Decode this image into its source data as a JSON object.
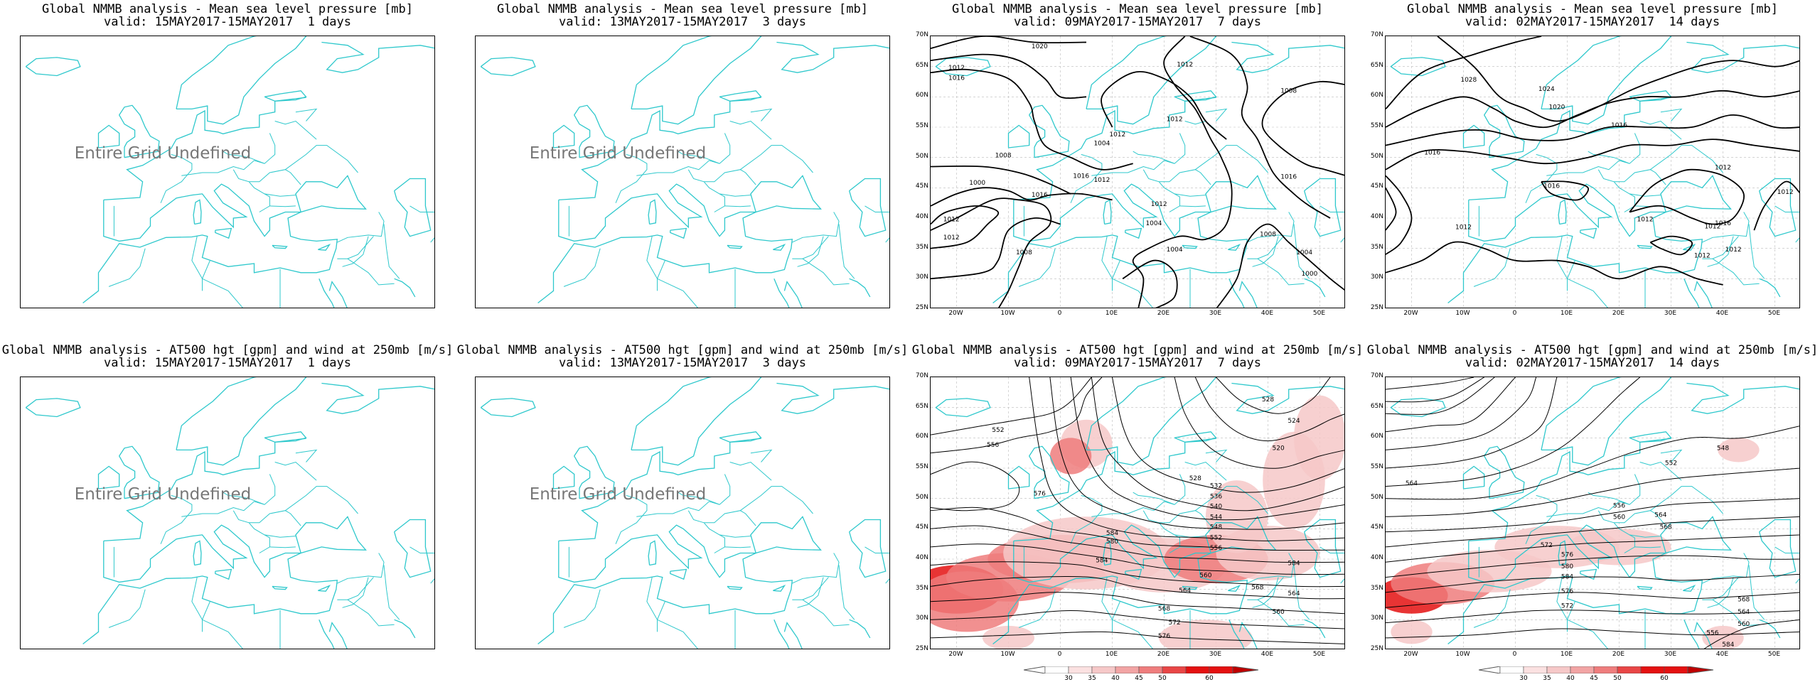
{
  "colors": {
    "coast": "#2ec8cc",
    "contour": "#000000",
    "wind_light": "#f6c8c8",
    "wind_mid": "#ef7d7d",
    "wind_strong": "#e41111"
  },
  "panels": [
    {
      "title": "Global NMMB analysis - Mean sea level pressure [mb]",
      "subtitle": "valid: 15MAY2017-15MAY2017  1 days",
      "undefined": "Entire Grid Undefined",
      "kind": "empty"
    },
    {
      "title": "Global NMMB analysis - Mean sea level pressure [mb]",
      "subtitle": "valid: 13MAY2017-15MAY2017  3 days",
      "undefined": "Entire Grid Undefined",
      "kind": "empty"
    },
    {
      "title": "Global NMMB analysis - Mean sea level pressure [mb]",
      "subtitle": "valid: 09MAY2017-15MAY2017  7 days",
      "kind": "mslp7"
    },
    {
      "title": "Global NMMB analysis - Mean sea level pressure [mb]",
      "subtitle": "valid: 02MAY2017-15MAY2017  14 days",
      "kind": "mslp14"
    },
    {
      "title": "Global NMMB analysis - AT500 hgt [gpm] and wind at 250mb [m/s]",
      "subtitle": "valid: 15MAY2017-15MAY2017  1 days",
      "undefined": "Entire Grid Undefined",
      "kind": "empty"
    },
    {
      "title": "Global NMMB analysis - AT500 hgt [gpm] and wind at 250mb [m/s]",
      "subtitle": "valid: 13MAY2017-15MAY2017  3 days",
      "undefined": "Entire Grid Undefined",
      "kind": "empty"
    },
    {
      "title": "Global NMMB analysis - AT500 hgt [gpm] and wind at 250mb [m/s]",
      "subtitle": "valid: 09MAY2017-15MAY2017  7 days",
      "kind": "z7"
    },
    {
      "title": "Global NMMB analysis - AT500 hgt [gpm] and wind at 250mb [m/s]",
      "subtitle": "valid: 02MAY2017-15MAY2017  14 days",
      "kind": "z14"
    }
  ],
  "lat_labels": [
    "70N",
    "65N",
    "60N",
    "55N",
    "50N",
    "45N",
    "40N",
    "35N",
    "30N",
    "25N"
  ],
  "lon_labels": [
    "20W",
    "10W",
    "0",
    "10E",
    "20E",
    "30E",
    "40E",
    "50E"
  ],
  "mslp7_labels": [
    "1020",
    "1016",
    "1012",
    "1008",
    "1004",
    "1000",
    "1012",
    "1004",
    "1008",
    "1012",
    "1016",
    "1012",
    "1016",
    "1004",
    "1008",
    "1004",
    "1000",
    "1008",
    "1012",
    "1012",
    "1012",
    "1016",
    "1012"
  ],
  "mslp14_labels": [
    "1028",
    "1024",
    "1020",
    "1016",
    "1016",
    "1012",
    "1016",
    "1012",
    "1012",
    "1016",
    "1012",
    "1012",
    "1012",
    "1012"
  ],
  "z7_labels": [
    "528",
    "524",
    "520",
    "552",
    "556",
    "528",
    "532",
    "536",
    "540",
    "544",
    "548",
    "552",
    "556",
    "560",
    "564",
    "568",
    "572",
    "576",
    "580",
    "584",
    "584",
    "584",
    "568",
    "564",
    "560",
    "576"
  ],
  "z14_labels": [
    "548",
    "564",
    "552",
    "556",
    "560",
    "564",
    "568",
    "572",
    "576",
    "580",
    "584",
    "576",
    "572",
    "568",
    "564",
    "560",
    "556",
    "584"
  ],
  "colorbar": {
    "ticks": [
      "30",
      "35",
      "40",
      "45",
      "50",
      "60"
    ]
  }
}
